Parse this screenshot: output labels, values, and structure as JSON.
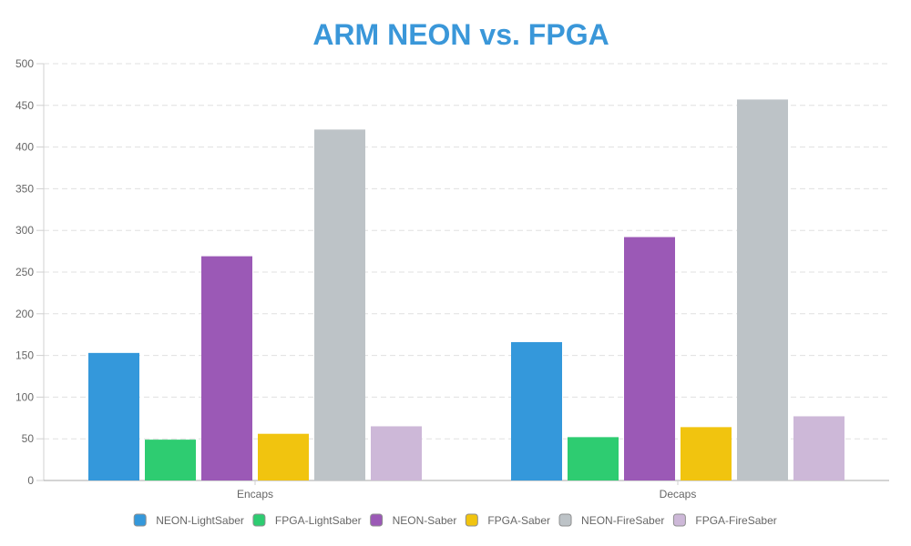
{
  "chart_data": {
    "type": "bar",
    "title": "ARM NEON vs. FPGA",
    "title_color": "#3a97d9",
    "xlabel": "",
    "ylabel": "",
    "categories": [
      "Encaps",
      "Decaps"
    ],
    "ylim": [
      0,
      500
    ],
    "yticks": [
      0,
      50,
      100,
      150,
      200,
      250,
      300,
      350,
      400,
      450,
      500
    ],
    "y_tick_labels": [
      "0",
      "50",
      "100",
      "150",
      "200",
      "250",
      "300",
      "350",
      "400",
      "450",
      "500"
    ],
    "grid": true,
    "legend_position": "bottom",
    "series": [
      {
        "name": "NEON-LightSaber",
        "color": "#3498db",
        "values": [
          153,
          166
        ]
      },
      {
        "name": "FPGA-LightSaber",
        "color": "#2ecc71",
        "values": [
          49,
          52
        ]
      },
      {
        "name": "NEON-Saber",
        "color": "#9b59b6",
        "values": [
          269,
          292
        ]
      },
      {
        "name": "FPGA-Saber",
        "color": "#f1c40f",
        "values": [
          56,
          64
        ]
      },
      {
        "name": "NEON-FireSaber",
        "color": "#bdc3c7",
        "values": [
          421,
          457
        ]
      },
      {
        "name": "FPGA-FireSaber",
        "color": "#cdb8d8",
        "values": [
          65,
          77
        ]
      }
    ]
  }
}
